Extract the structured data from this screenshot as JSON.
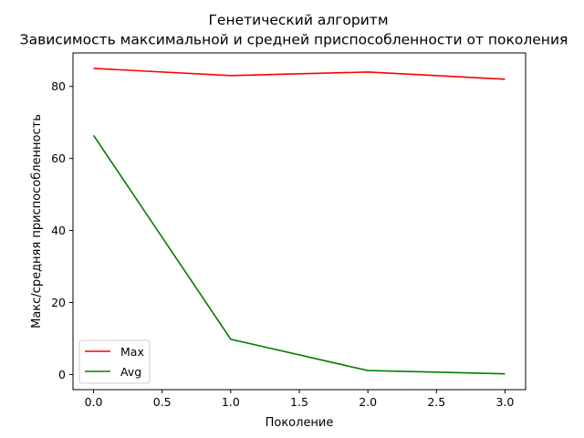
{
  "chart_data": {
    "type": "line",
    "title": "Генетический алгоритм",
    "subtitle": "Зависимость максимальной и средней приспособленности от поколения",
    "xlabel": "Поколение",
    "ylabel": "Макс/средняя приспособленность",
    "x": [
      0,
      1,
      2,
      3
    ],
    "xlim": [
      -0.15,
      3.15
    ],
    "ylim": [
      -4.2,
      89.3
    ],
    "xticks": [
      "0.0",
      "0.5",
      "1.0",
      "1.5",
      "2.0",
      "2.5",
      "3.0"
    ],
    "yticks": [
      "0",
      "20",
      "40",
      "60",
      "80"
    ],
    "grid": false,
    "legend_position": "lower-left",
    "series": [
      {
        "name": "Max",
        "color": "#ff0000",
        "values": [
          85,
          83,
          84,
          82
        ]
      },
      {
        "name": "Avg",
        "color": "#008000",
        "values": [
          66.4,
          9.8,
          1.1,
          0.2
        ]
      }
    ]
  }
}
